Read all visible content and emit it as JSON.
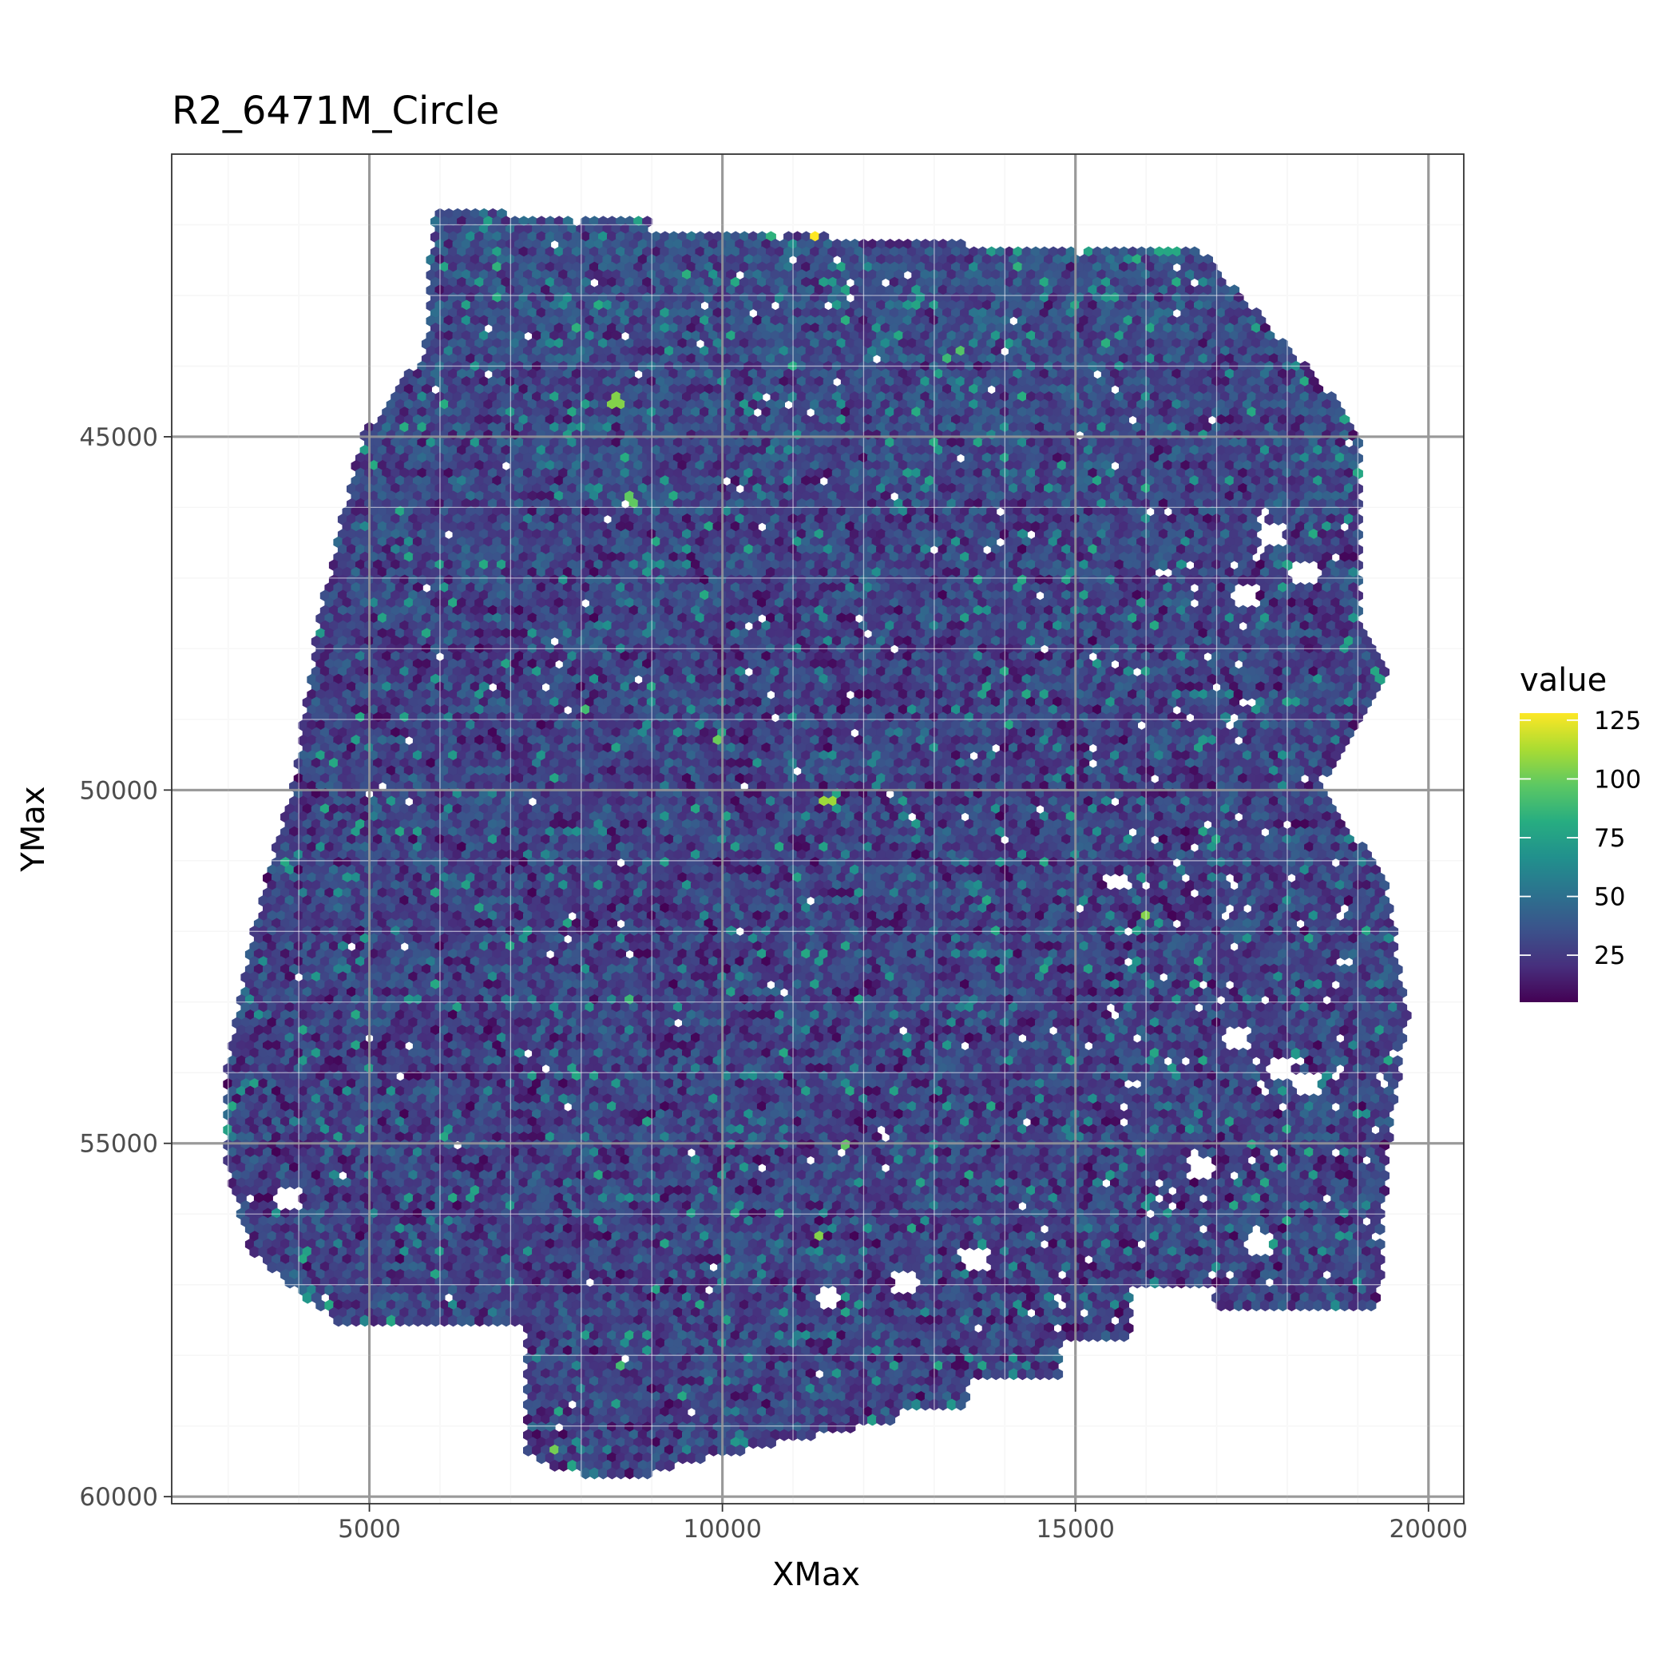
{
  "chart_data": {
    "type": "heatmap",
    "title": "R2_6471M_Circle",
    "xlabel": "XMax",
    "ylabel": "YMax",
    "xlim": [
      2200,
      20500
    ],
    "ylim": [
      60100,
      41000
    ],
    "y_reversed": true,
    "x_ticks": [
      5000,
      10000,
      15000,
      20000
    ],
    "x_tick_labels": [
      "5000",
      "10000",
      "15000",
      "20000"
    ],
    "y_ticks": [
      45000,
      50000,
      55000,
      60000
    ],
    "y_tick_labels": [
      "45000",
      "50000",
      "55000",
      "60000"
    ],
    "grid": true,
    "legend": {
      "title": "value",
      "position": "right",
      "min": 5,
      "max": 128,
      "ticks": [
        25,
        50,
        75,
        100,
        125
      ],
      "tick_labels": [
        "25",
        "50",
        "75",
        "100",
        "125"
      ],
      "palette": "viridis",
      "colors": [
        "#440154",
        "#472f7d",
        "#3b528b",
        "#2c728e",
        "#21908d",
        "#27ad81",
        "#5cc863",
        "#aadc32",
        "#fde725"
      ]
    },
    "marker": "hexagon",
    "typical_value": 30,
    "outline": {
      "left": [
        [
          41850,
          5900
        ],
        [
          43800,
          5800
        ],
        [
          45000,
          4900
        ],
        [
          47500,
          4300
        ],
        [
          49800,
          3950
        ],
        [
          52000,
          3350
        ],
        [
          54500,
          2900
        ],
        [
          55200,
          2950
        ],
        [
          56500,
          3300
        ],
        [
          57500,
          4500
        ],
        [
          58400,
          5000
        ],
        [
          59000,
          6500
        ],
        [
          59500,
          7500
        ],
        [
          60050,
          7600
        ]
      ],
      "right": [
        [
          41850,
          9000
        ],
        [
          42200,
          13500
        ],
        [
          42300,
          16700
        ],
        [
          42700,
          17900
        ],
        [
          43700,
          18500
        ],
        [
          45000,
          19000
        ],
        [
          47500,
          19000
        ],
        [
          48300,
          19450
        ],
        [
          50000,
          18500
        ],
        [
          51300,
          19400
        ],
        [
          53200,
          19700
        ],
        [
          55200,
          19400
        ],
        [
          57300,
          19300
        ],
        [
          58000,
          17500
        ],
        [
          58400,
          15000
        ],
        [
          59000,
          12000
        ],
        [
          59500,
          9500
        ],
        [
          60050,
          8000
        ]
      ]
    },
    "holes": [
      [
        46900,
        18300
      ],
      [
        46400,
        17800
      ],
      [
        47200,
        17400
      ],
      [
        51300,
        15600
      ],
      [
        53500,
        17300
      ],
      [
        55300,
        16800
      ],
      [
        56400,
        17600
      ],
      [
        57000,
        12600
      ],
      [
        57150,
        11500
      ],
      [
        55800,
        3850
      ],
      [
        54200,
        18300
      ],
      [
        53900,
        17900
      ],
      [
        56600,
        13600
      ]
    ],
    "hotspots": [
      [
        41950,
        11500,
        125
      ],
      [
        41950,
        12300,
        122
      ],
      [
        42200,
        11300,
        128
      ],
      [
        43800,
        13400,
        95
      ],
      [
        44500,
        8500,
        105
      ],
      [
        45900,
        8700,
        98
      ],
      [
        49300,
        9900,
        100
      ],
      [
        50200,
        11500,
        110
      ],
      [
        51000,
        16400,
        100
      ],
      [
        51800,
        16000,
        105
      ],
      [
        56300,
        11400,
        105
      ],
      [
        55000,
        11800,
        98
      ],
      [
        59300,
        7600,
        102
      ],
      [
        48900,
        8100,
        90
      ],
      [
        43900,
        13200,
        88
      ],
      [
        45800,
        9300,
        80
      ],
      [
        51600,
        13800,
        80
      ],
      [
        53000,
        8700,
        88
      ],
      [
        58100,
        8600,
        90
      ],
      [
        54900,
        15000,
        60
      ]
    ]
  }
}
